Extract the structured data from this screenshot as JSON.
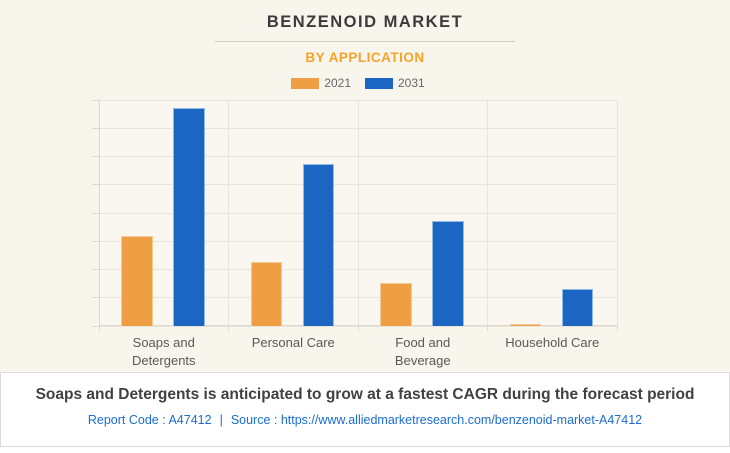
{
  "header": {
    "title": "BENZENOID MARKET",
    "subtitle": "BY APPLICATION"
  },
  "chart_data": {
    "type": "bar",
    "categories": [
      "Soaps and Detergents",
      "Personal Care",
      "Food and Beverage",
      "Household Care"
    ],
    "series": [
      {
        "name": "2021",
        "color": "#ef9f43",
        "values": [
          40,
          28.5,
          19,
          1
        ]
      },
      {
        "name": "2031",
        "color": "#1a66c2",
        "values": [
          96.5,
          71.5,
          46.5,
          16.5
        ]
      }
    ],
    "title": "BENZENOID MARKET",
    "subtitle": "BY APPLICATION",
    "xlabel": "",
    "ylabel": "",
    "ylim": [
      0,
      100
    ],
    "grid": true,
    "grid_rows": 8,
    "legend_position": "top"
  },
  "footer": {
    "headline": "Soaps and Detergents is anticipated to grow at a fastest CAGR during the forecast period",
    "report_code": "Report Code : A47412",
    "separator": "|",
    "source": "Source : https://www.alliedmarketresearch.com/benzenoid-market-A47412"
  },
  "colors": {
    "background": "#f8f5ed",
    "series_2021": "#ef9f43",
    "series_2031": "#1a66c2",
    "subtitle_accent": "#f6a329",
    "link": "#1a6dd0"
  }
}
